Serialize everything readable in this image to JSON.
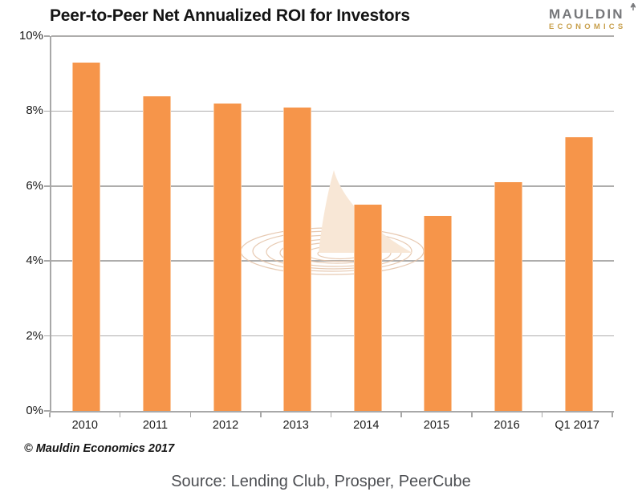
{
  "header": {
    "title": "Peer-to-Peer Net Annualized ROI for Investors",
    "logo": {
      "line1": "MAULDIN",
      "line2": "ECONOMICS",
      "line1_color": "#76777a",
      "line2_color": "#c8a04d"
    }
  },
  "chart_data": {
    "type": "bar",
    "title": "Peer-to-Peer Net Annualized ROI for Investors",
    "categories": [
      "2010",
      "2011",
      "2012",
      "2013",
      "2014",
      "2015",
      "2016",
      "Q1 2017"
    ],
    "values": [
      9.3,
      8.4,
      8.2,
      8.1,
      5.5,
      5.2,
      6.1,
      7.3
    ],
    "unit": "%",
    "xlabel": "",
    "ylabel": "",
    "ylim": [
      0,
      10
    ],
    "yticks": [
      {
        "value": 10,
        "label": "10%"
      },
      {
        "value": 8,
        "label": "8%"
      },
      {
        "value": 6,
        "label": "6%"
      },
      {
        "value": 4,
        "label": "4%"
      },
      {
        "value": 2,
        "label": "2%"
      },
      {
        "value": 0,
        "label": "0%"
      }
    ],
    "grid": "horizontal",
    "legend": "none",
    "bar_color": "#f6954a",
    "gridline_color": "#aeadac",
    "axis_color": "#a8a8a8",
    "watermark": "shark-fin-with-ripples"
  },
  "footer": {
    "copyright": "© Mauldin Economics 2017",
    "source": "Source: Lending Club, Prosper, PeerCube"
  }
}
